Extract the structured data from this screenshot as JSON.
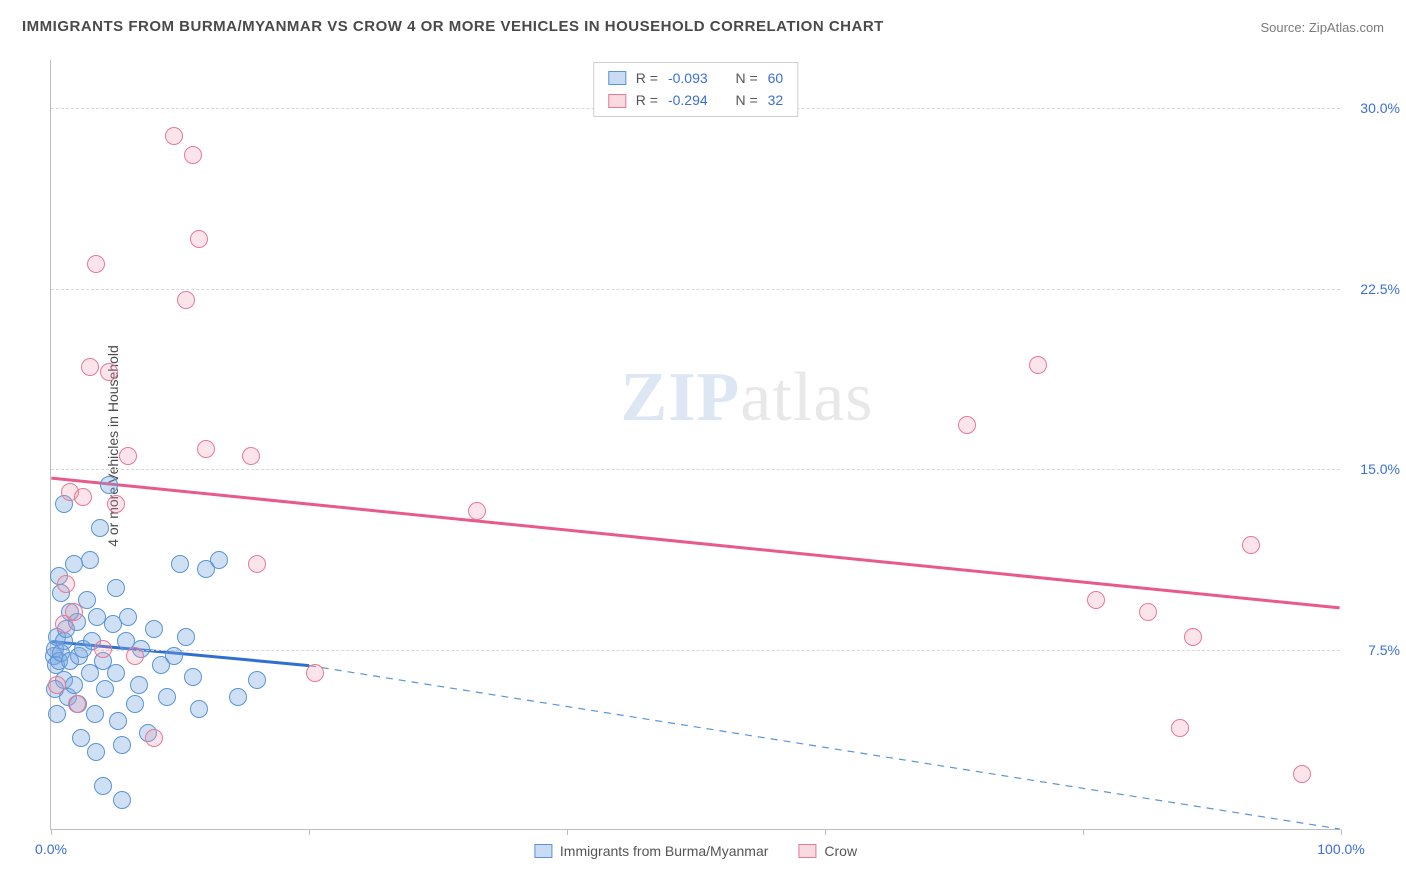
{
  "title": "IMMIGRANTS FROM BURMA/MYANMAR VS CROW 4 OR MORE VEHICLES IN HOUSEHOLD CORRELATION CHART",
  "source": "Source: ZipAtlas.com",
  "watermark_zip": "ZIP",
  "watermark_atlas": "atlas",
  "ylabel": "4 or more Vehicles in Household",
  "chart": {
    "type": "scatter",
    "xlim": [
      0,
      100
    ],
    "ylim": [
      0,
      32
    ],
    "xtick_positions": [
      0,
      20,
      40,
      60,
      80,
      100
    ],
    "xtick_labels_shown": {
      "0": "0.0%",
      "100": "100.0%"
    },
    "ytick_positions": [
      7.5,
      15.0,
      22.5,
      30.0
    ],
    "ytick_labels": [
      "7.5%",
      "15.0%",
      "22.5%",
      "30.0%"
    ],
    "grid_color": "#d8d8d8",
    "axis_color": "#bdbdbd",
    "tick_label_color": "#3b6fd6",
    "background_color": "#ffffff",
    "marker_radius": 9,
    "series": [
      {
        "name": "Immigrants from Burma/Myanmar",
        "color_fill": "rgba(119,167,224,0.35)",
        "color_stroke": "#5a94d6",
        "line_color": "#2f6fd0",
        "line_width": 3,
        "dash_color": "#5a94d6",
        "R": "-0.093",
        "N": "60",
        "trend_solid": {
          "x1": 0,
          "y1": 7.8,
          "x2": 20,
          "y2": 6.8
        },
        "trend_dash": {
          "x1": 20,
          "y1": 6.8,
          "x2": 100,
          "y2": 0.0
        },
        "points": [
          [
            0.2,
            7.2
          ],
          [
            0.3,
            7.5
          ],
          [
            0.5,
            8.0
          ],
          [
            0.4,
            6.8
          ],
          [
            0.6,
            7.0
          ],
          [
            0.8,
            7.3
          ],
          [
            1.0,
            7.8
          ],
          [
            1.2,
            8.3
          ],
          [
            1.0,
            6.2
          ],
          [
            1.5,
            7.0
          ],
          [
            1.3,
            5.5
          ],
          [
            1.8,
            6.0
          ],
          [
            2.0,
            8.6
          ],
          [
            2.2,
            7.2
          ],
          [
            2.1,
            5.2
          ],
          [
            2.5,
            7.5
          ],
          [
            2.8,
            9.5
          ],
          [
            3.0,
            6.5
          ],
          [
            3.0,
            11.2
          ],
          [
            3.2,
            7.8
          ],
          [
            3.4,
            4.8
          ],
          [
            3.6,
            8.8
          ],
          [
            3.8,
            12.5
          ],
          [
            4.0,
            7.0
          ],
          [
            4.2,
            5.8
          ],
          [
            4.5,
            14.3
          ],
          [
            4.8,
            8.5
          ],
          [
            5.0,
            6.5
          ],
          [
            5.2,
            4.5
          ],
          [
            5.5,
            3.5
          ],
          [
            5.0,
            10.0
          ],
          [
            5.8,
            7.8
          ],
          [
            6.0,
            8.8
          ],
          [
            6.5,
            5.2
          ],
          [
            7.0,
            7.5
          ],
          [
            6.8,
            6.0
          ],
          [
            7.5,
            4.0
          ],
          [
            8.0,
            8.3
          ],
          [
            8.5,
            6.8
          ],
          [
            9.0,
            5.5
          ],
          [
            9.5,
            7.2
          ],
          [
            10.0,
            11.0
          ],
          [
            10.5,
            8.0
          ],
          [
            11.0,
            6.3
          ],
          [
            11.5,
            5.0
          ],
          [
            12.0,
            10.8
          ],
          [
            13.0,
            11.2
          ],
          [
            14.5,
            5.5
          ],
          [
            16.0,
            6.2
          ],
          [
            5.5,
            1.2
          ],
          [
            4.0,
            1.8
          ],
          [
            1.0,
            13.5
          ],
          [
            1.5,
            9.0
          ],
          [
            0.8,
            9.8
          ],
          [
            0.3,
            5.8
          ],
          [
            0.5,
            4.8
          ],
          [
            2.3,
            3.8
          ],
          [
            3.5,
            3.2
          ],
          [
            1.8,
            11.0
          ],
          [
            0.6,
            10.5
          ]
        ]
      },
      {
        "name": "Crow",
        "color_fill": "rgba(240,150,170,0.25)",
        "color_stroke": "#e77a96",
        "line_color": "#e85a88",
        "line_width": 3,
        "R": "-0.294",
        "N": "32",
        "trend_solid": {
          "x1": 0,
          "y1": 14.6,
          "x2": 100,
          "y2": 9.2
        },
        "points": [
          [
            0.5,
            6.0
          ],
          [
            1.0,
            8.5
          ],
          [
            1.2,
            10.2
          ],
          [
            1.5,
            14.0
          ],
          [
            1.8,
            9.0
          ],
          [
            2.5,
            13.8
          ],
          [
            3.0,
            19.2
          ],
          [
            3.5,
            23.5
          ],
          [
            4.5,
            19.0
          ],
          [
            5.0,
            13.5
          ],
          [
            6.0,
            15.5
          ],
          [
            8.0,
            3.8
          ],
          [
            9.5,
            28.8
          ],
          [
            10.5,
            22.0
          ],
          [
            11.0,
            28.0
          ],
          [
            11.5,
            24.5
          ],
          [
            12.0,
            15.8
          ],
          [
            15.5,
            15.5
          ],
          [
            16.0,
            11.0
          ],
          [
            20.5,
            6.5
          ],
          [
            33.0,
            13.2
          ],
          [
            71.0,
            16.8
          ],
          [
            76.5,
            19.3
          ],
          [
            81.0,
            9.5
          ],
          [
            85.0,
            9.0
          ],
          [
            87.5,
            4.2
          ],
          [
            88.5,
            8.0
          ],
          [
            93.0,
            11.8
          ],
          [
            97.0,
            2.3
          ],
          [
            2.0,
            5.2
          ],
          [
            6.5,
            7.2
          ],
          [
            4.0,
            7.5
          ]
        ]
      }
    ]
  },
  "legend_top": {
    "R_label": "R =",
    "N_label": "N ="
  },
  "legend_bottom": {
    "label1": "Immigrants from Burma/Myanmar",
    "label2": "Crow"
  }
}
